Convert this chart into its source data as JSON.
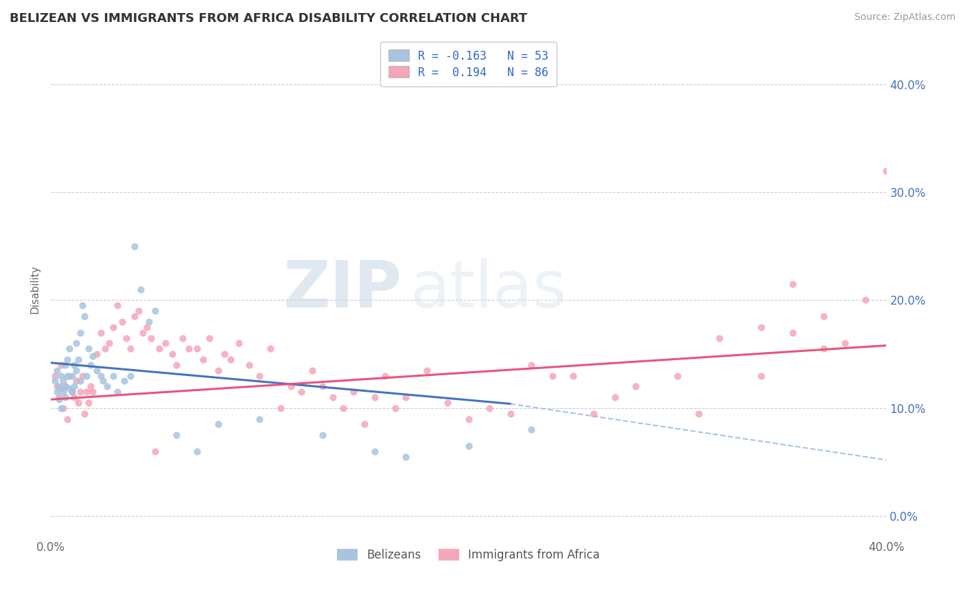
{
  "title": "BELIZEAN VS IMMIGRANTS FROM AFRICA DISABILITY CORRELATION CHART",
  "source": "Source: ZipAtlas.com",
  "ylabel": "Disability",
  "xlim": [
    0.0,
    0.4
  ],
  "ylim": [
    -0.02,
    0.44
  ],
  "ytick_vals": [
    0.0,
    0.1,
    0.2,
    0.3,
    0.4
  ],
  "ytick_labels": [
    "0.0%",
    "10.0%",
    "20.0%",
    "30.0%",
    "40.0%"
  ],
  "xtick_vals": [
    0.0,
    0.1,
    0.2,
    0.3,
    0.4
  ],
  "xtick_labels": [
    "0.0%",
    "",
    "",
    "",
    "40.0%"
  ],
  "belizean_color": "#a8c4e0",
  "africa_color": "#f4a7b9",
  "trend_belizean_color": "#4472c4",
  "trend_africa_color": "#e8547a",
  "trend_dashed_color": "#a8c4e0",
  "watermark_color": "#d0dce8",
  "R_belizean": -0.163,
  "N_belizean": 53,
  "R_africa": 0.194,
  "N_africa": 86,
  "belizean_x": [
    0.002,
    0.003,
    0.003,
    0.004,
    0.004,
    0.005,
    0.005,
    0.005,
    0.006,
    0.006,
    0.007,
    0.007,
    0.007,
    0.008,
    0.008,
    0.009,
    0.009,
    0.01,
    0.01,
    0.011,
    0.011,
    0.012,
    0.012,
    0.013,
    0.014,
    0.014,
    0.015,
    0.016,
    0.017,
    0.018,
    0.019,
    0.02,
    0.022,
    0.024,
    0.025,
    0.027,
    0.03,
    0.032,
    0.035,
    0.038,
    0.04,
    0.043,
    0.047,
    0.05,
    0.06,
    0.07,
    0.08,
    0.1,
    0.13,
    0.155,
    0.17,
    0.2,
    0.23
  ],
  "belizean_y": [
    0.125,
    0.115,
    0.135,
    0.12,
    0.108,
    0.13,
    0.118,
    0.1,
    0.125,
    0.115,
    0.14,
    0.12,
    0.11,
    0.145,
    0.13,
    0.155,
    0.118,
    0.13,
    0.115,
    0.14,
    0.12,
    0.16,
    0.135,
    0.145,
    0.17,
    0.125,
    0.195,
    0.185,
    0.13,
    0.155,
    0.14,
    0.148,
    0.135,
    0.13,
    0.125,
    0.12,
    0.13,
    0.115,
    0.125,
    0.13,
    0.25,
    0.21,
    0.18,
    0.19,
    0.075,
    0.06,
    0.085,
    0.09,
    0.075,
    0.06,
    0.055,
    0.065,
    0.08
  ],
  "africa_x": [
    0.002,
    0.003,
    0.004,
    0.005,
    0.006,
    0.007,
    0.008,
    0.009,
    0.01,
    0.011,
    0.012,
    0.013,
    0.014,
    0.015,
    0.016,
    0.017,
    0.018,
    0.019,
    0.02,
    0.022,
    0.024,
    0.026,
    0.028,
    0.03,
    0.032,
    0.034,
    0.036,
    0.038,
    0.04,
    0.042,
    0.044,
    0.046,
    0.048,
    0.05,
    0.052,
    0.055,
    0.058,
    0.06,
    0.063,
    0.066,
    0.07,
    0.073,
    0.076,
    0.08,
    0.083,
    0.086,
    0.09,
    0.095,
    0.1,
    0.105,
    0.11,
    0.115,
    0.12,
    0.125,
    0.13,
    0.135,
    0.14,
    0.145,
    0.15,
    0.155,
    0.16,
    0.165,
    0.17,
    0.18,
    0.19,
    0.2,
    0.21,
    0.22,
    0.23,
    0.24,
    0.25,
    0.26,
    0.27,
    0.28,
    0.3,
    0.31,
    0.32,
    0.34,
    0.355,
    0.37,
    0.38,
    0.39,
    0.4,
    0.34,
    0.355,
    0.37
  ],
  "africa_y": [
    0.13,
    0.12,
    0.11,
    0.14,
    0.1,
    0.12,
    0.09,
    0.13,
    0.115,
    0.11,
    0.125,
    0.105,
    0.115,
    0.13,
    0.095,
    0.115,
    0.105,
    0.12,
    0.115,
    0.15,
    0.17,
    0.155,
    0.16,
    0.175,
    0.195,
    0.18,
    0.165,
    0.155,
    0.185,
    0.19,
    0.17,
    0.175,
    0.165,
    0.06,
    0.155,
    0.16,
    0.15,
    0.14,
    0.165,
    0.155,
    0.155,
    0.145,
    0.165,
    0.135,
    0.15,
    0.145,
    0.16,
    0.14,
    0.13,
    0.155,
    0.1,
    0.12,
    0.115,
    0.135,
    0.12,
    0.11,
    0.1,
    0.115,
    0.085,
    0.11,
    0.13,
    0.1,
    0.11,
    0.135,
    0.105,
    0.09,
    0.1,
    0.095,
    0.14,
    0.13,
    0.13,
    0.095,
    0.11,
    0.12,
    0.13,
    0.095,
    0.165,
    0.13,
    0.17,
    0.155,
    0.16,
    0.2,
    0.32,
    0.175,
    0.215,
    0.185
  ],
  "trend_b_x0": 0.0,
  "trend_b_x1": 0.22,
  "trend_b_y0": 0.142,
  "trend_b_y1": 0.104,
  "trend_dash_x0": 0.22,
  "trend_dash_x1": 0.4,
  "trend_dash_y0": 0.104,
  "trend_dash_y1": 0.052,
  "trend_a_x0": 0.0,
  "trend_a_x1": 0.4,
  "trend_a_y0": 0.108,
  "trend_a_y1": 0.158
}
